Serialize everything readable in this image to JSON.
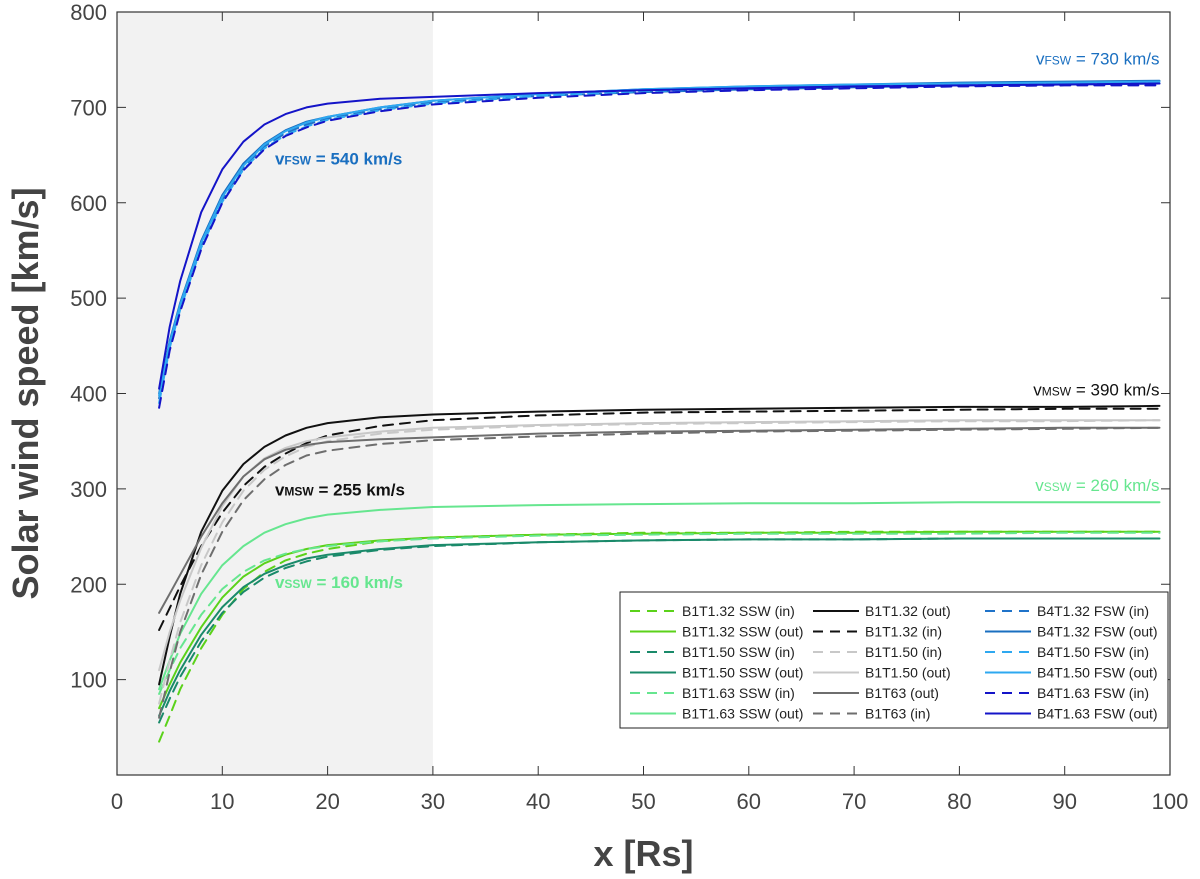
{
  "chart_data": {
    "type": "line",
    "title": "",
    "xlabel": "x [Rs]",
    "ylabel": "Solar wind speed [km/s]",
    "xlim": [
      0,
      100
    ],
    "ylim": [
      0,
      800
    ],
    "xticks": [
      "0",
      "10",
      "20",
      "30",
      "40",
      "50",
      "60",
      "70",
      "80",
      "90",
      "100"
    ],
    "yticks": [
      "100",
      "200",
      "300",
      "400",
      "500",
      "600",
      "700",
      "800"
    ],
    "shaded_region": {
      "x_from": 0,
      "x_to": 30,
      "color": "#f2f2f2"
    },
    "x": [
      4,
      5,
      6,
      8,
      10,
      12,
      14,
      16,
      18,
      20,
      25,
      30,
      40,
      50,
      60,
      70,
      80,
      90,
      99
    ],
    "series": [
      {
        "name": "B1T1.32 SSW (in)",
        "color": "#5bd21a",
        "dash": "dashed",
        "values": [
          35,
          62,
          90,
          133,
          168,
          195,
          213,
          225,
          232,
          237,
          245,
          249,
          252,
          254,
          254,
          255,
          255,
          255,
          255
        ]
      },
      {
        "name": "B1T1.32 SSW (out)",
        "color": "#5bd21a",
        "dash": "solid",
        "values": [
          70,
          95,
          118,
          155,
          186,
          208,
          222,
          231,
          237,
          241,
          246,
          249,
          252,
          253,
          254,
          254,
          255,
          255,
          255
        ]
      },
      {
        "name": "B1T1.50 SSW (in)",
        "color": "#1a8a6a",
        "dash": "dashed",
        "values": [
          55,
          80,
          103,
          140,
          170,
          192,
          207,
          217,
          224,
          229,
          236,
          240,
          244,
          246,
          247,
          247,
          248,
          248,
          248
        ]
      },
      {
        "name": "B1T1.50 SSW (out)",
        "color": "#1a8a6a",
        "dash": "solid",
        "values": [
          62,
          88,
          110,
          147,
          176,
          197,
          211,
          220,
          227,
          231,
          237,
          241,
          244,
          246,
          247,
          247,
          248,
          248,
          248
        ]
      },
      {
        "name": "B1T1.63 SSW (in)",
        "color": "#66e68f",
        "dash": "dashed",
        "values": [
          85,
          110,
          133,
          168,
          195,
          213,
          225,
          232,
          237,
          240,
          245,
          248,
          251,
          252,
          253,
          253,
          253,
          254,
          254
        ]
      },
      {
        "name": "B1T1.63 SSW (out)",
        "color": "#66e68f",
        "dash": "solid",
        "values": [
          90,
          120,
          148,
          190,
          220,
          240,
          254,
          263,
          269,
          273,
          278,
          281,
          283,
          284,
          285,
          285,
          286,
          286,
          286
        ]
      },
      {
        "name": "B1T1.32 (out)",
        "color": "#111111",
        "dash": "solid",
        "values": [
          95,
          145,
          190,
          255,
          298,
          326,
          344,
          356,
          364,
          369,
          375,
          378,
          381,
          383,
          384,
          385,
          386,
          386,
          387
        ]
      },
      {
        "name": "B1T1.32 (in)",
        "color": "#111111",
        "dash": "dashed",
        "values": [
          152,
          175,
          198,
          240,
          275,
          303,
          323,
          337,
          348,
          356,
          366,
          372,
          377,
          380,
          381,
          382,
          383,
          384,
          384
        ]
      },
      {
        "name": "B1T1.50 (in)",
        "color": "#c8c8c8",
        "dash": "dashed",
        "values": [
          75,
          120,
          160,
          220,
          265,
          298,
          320,
          334,
          344,
          350,
          358,
          362,
          366,
          368,
          369,
          370,
          371,
          371,
          372
        ]
      },
      {
        "name": "B1T1.50 (out)",
        "color": "#c8c8c8",
        "dash": "solid",
        "values": [
          110,
          150,
          183,
          238,
          282,
          313,
          332,
          343,
          350,
          354,
          360,
          364,
          367,
          369,
          370,
          371,
          372,
          372,
          372
        ]
      },
      {
        "name": "B1T63 (out)",
        "color": "#6e6e6e",
        "dash": "solid",
        "values": [
          170,
          190,
          210,
          250,
          285,
          313,
          331,
          341,
          346,
          349,
          352,
          354,
          358,
          360,
          361,
          362,
          363,
          364,
          364
        ]
      },
      {
        "name": "B1T63 (in)",
        "color": "#6e6e6e",
        "dash": "dashed",
        "values": [
          60,
          108,
          150,
          210,
          255,
          288,
          310,
          325,
          335,
          340,
          347,
          351,
          355,
          358,
          360,
          361,
          362,
          363,
          364
        ]
      },
      {
        "name": "B4T1.32 FSW (in)",
        "color": "#1f73c9",
        "dash": "dashed",
        "values": [
          395,
          450,
          490,
          555,
          603,
          637,
          659,
          673,
          682,
          688,
          698,
          705,
          712,
          716,
          719,
          721,
          723,
          724,
          725
        ]
      },
      {
        "name": "B4T1.32 FSW (out)",
        "color": "#1a6fc0",
        "dash": "solid",
        "values": [
          400,
          455,
          495,
          560,
          608,
          641,
          662,
          676,
          685,
          690,
          700,
          707,
          714,
          719,
          722,
          724,
          726,
          727,
          728
        ]
      },
      {
        "name": "B4T1.50 FSW (in)",
        "color": "#2ea8f0",
        "dash": "dashed",
        "values": [
          390,
          448,
          488,
          553,
          601,
          635,
          657,
          671,
          680,
          687,
          697,
          704,
          712,
          717,
          720,
          722,
          724,
          725,
          726
        ]
      },
      {
        "name": "B4T1.50 FSW (out)",
        "color": "#2ea8f0",
        "dash": "solid",
        "values": [
          398,
          453,
          493,
          558,
          606,
          639,
          661,
          675,
          684,
          690,
          700,
          707,
          714,
          719,
          722,
          724,
          725,
          726,
          727
        ]
      },
      {
        "name": "B4T1.63 FSW (in)",
        "color": "#1414c8",
        "dash": "dashed",
        "values": [
          385,
          445,
          486,
          551,
          600,
          634,
          656,
          670,
          679,
          686,
          696,
          703,
          710,
          715,
          718,
          720,
          722,
          723,
          723
        ]
      },
      {
        "name": "B4T1.63 FSW (out)",
        "color": "#1414c8",
        "dash": "solid",
        "values": [
          405,
          470,
          518,
          590,
          635,
          664,
          682,
          693,
          700,
          704,
          709,
          711,
          715,
          718,
          720,
          722,
          723,
          724,
          725
        ]
      }
    ],
    "annotations": [
      {
        "prefix": "v",
        "sub": "FSW",
        "text": " = 730 km/s",
        "x": 99,
        "y": 745,
        "anchor": "end",
        "color": "#1a6fc0",
        "bold": false
      },
      {
        "prefix": "v",
        "sub": "FSW",
        "text": " = 540 km/s",
        "x": 15,
        "y": 640,
        "anchor": "start",
        "color": "#1a6fc0",
        "bold": true
      },
      {
        "prefix": "v",
        "sub": "MSW",
        "text": " = 390 km/s",
        "x": 99,
        "y": 398,
        "anchor": "end",
        "color": "#111111",
        "bold": false
      },
      {
        "prefix": "v",
        "sub": "MSW",
        "text": " = 255 km/s",
        "x": 15,
        "y": 293,
        "anchor": "start",
        "color": "#111111",
        "bold": true
      },
      {
        "prefix": "v",
        "sub": "SSW",
        "text": " = 260 km/s",
        "x": 99,
        "y": 298,
        "anchor": "end",
        "color": "#66e68f",
        "bold": false
      },
      {
        "prefix": "v",
        "sub": "SSW",
        "text": " = 160 km/s",
        "x": 15,
        "y": 196,
        "anchor": "start",
        "color": "#66e68f",
        "bold": true
      }
    ],
    "legend": {
      "position": "bottom-right",
      "columns": 3
    }
  }
}
